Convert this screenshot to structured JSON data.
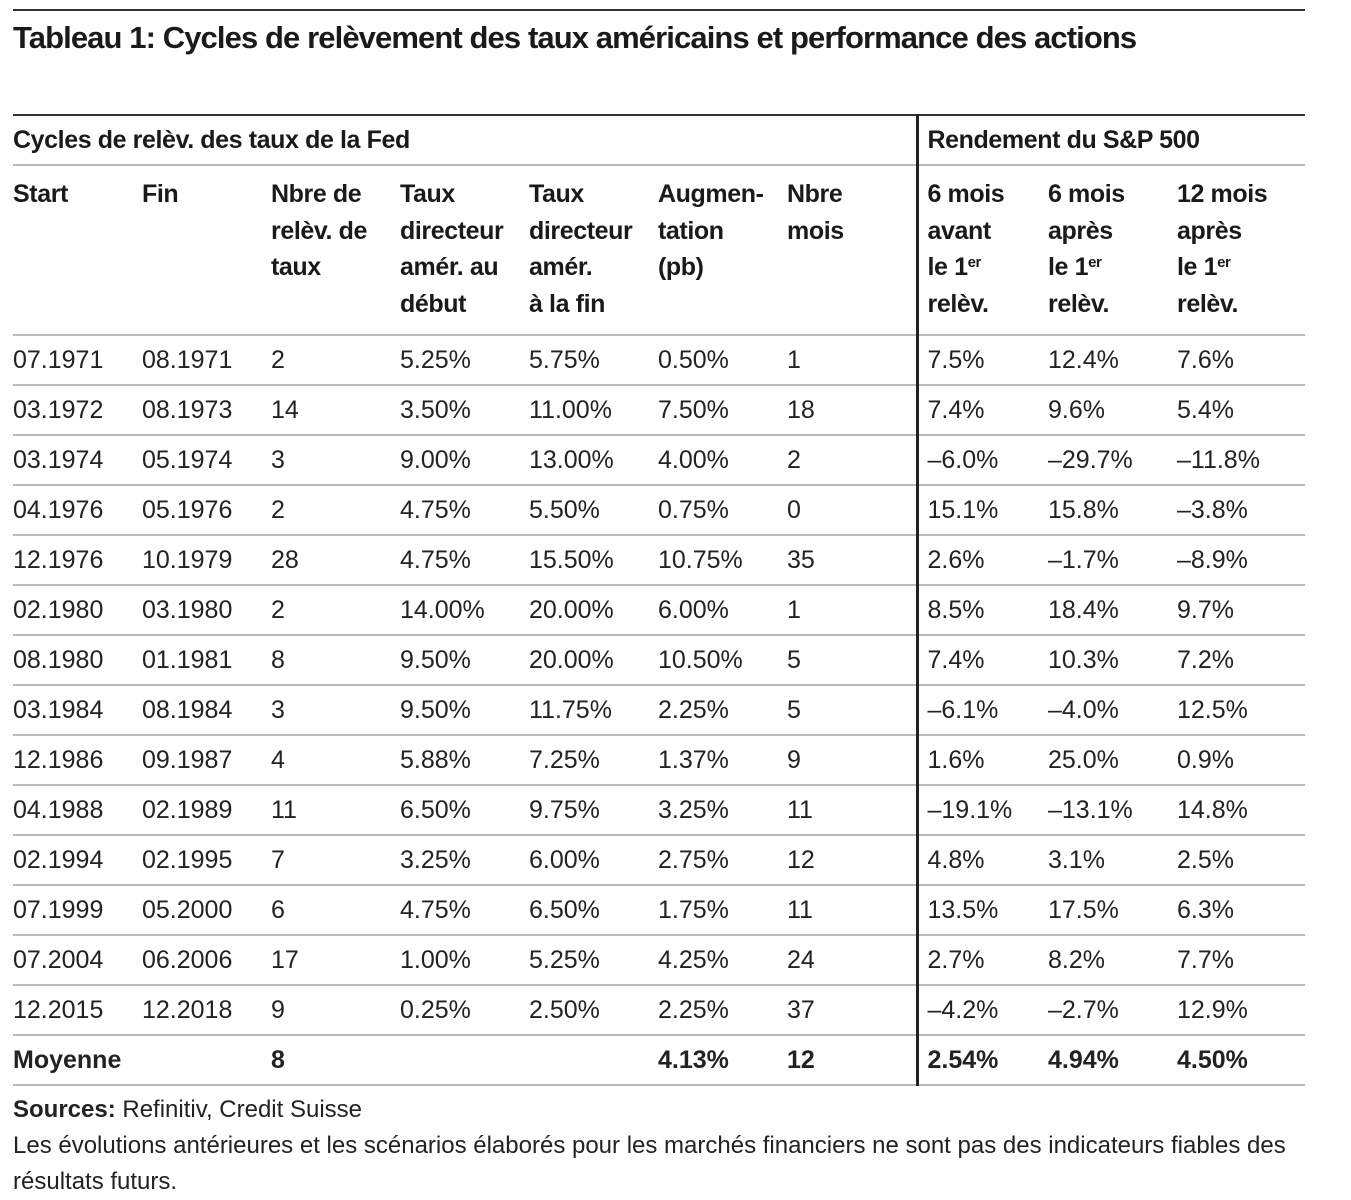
{
  "title": "Tableau 1: Cycles de relèvement des taux américains et performance des actions",
  "group_headers": [
    "Cycles de relèv. des taux de la Fed",
    "Rendement du S&P 500"
  ],
  "columns": [
    {
      "lines": [
        "Start"
      ]
    },
    {
      "lines": [
        "Fin"
      ]
    },
    {
      "lines": [
        "Nbre de",
        "relèv. de",
        "taux"
      ]
    },
    {
      "lines": [
        "Taux",
        "directeur",
        "amér. au",
        "début"
      ]
    },
    {
      "lines": [
        "Taux",
        "directeur",
        "amér.",
        "à la fin"
      ]
    },
    {
      "lines": [
        "Augmen-",
        "tation",
        "(pb)"
      ]
    },
    {
      "lines": [
        "Nbre",
        "mois"
      ]
    },
    {
      "lines": [
        "6 mois",
        "avant",
        "le 1|er",
        "relèv."
      ]
    },
    {
      "lines": [
        "6 mois",
        "après",
        "le 1|er",
        "relèv."
      ]
    },
    {
      "lines": [
        "12 mois",
        "après",
        "le 1|er",
        "relèv."
      ]
    }
  ],
  "rows": [
    [
      "07.1971",
      "08.1971",
      "2",
      "5.25%",
      "5.75%",
      "0.50%",
      "1",
      "7.5%",
      "12.4%",
      "7.6%"
    ],
    [
      "03.1972",
      "08.1973",
      "14",
      "3.50%",
      "11.00%",
      "7.50%",
      "18",
      "7.4%",
      "9.6%",
      "5.4%"
    ],
    [
      "03.1974",
      "05.1974",
      "3",
      "9.00%",
      "13.00%",
      "4.00%",
      "2",
      "–6.0%",
      "–29.7%",
      "–11.8%"
    ],
    [
      "04.1976",
      "05.1976",
      "2",
      "4.75%",
      "5.50%",
      "0.75%",
      "0",
      "15.1%",
      "15.8%",
      "–3.8%"
    ],
    [
      "12.1976",
      "10.1979",
      "28",
      "4.75%",
      "15.50%",
      "10.75%",
      "35",
      "2.6%",
      "–1.7%",
      "–8.9%"
    ],
    [
      "02.1980",
      "03.1980",
      "2",
      "14.00%",
      "20.00%",
      "6.00%",
      "1",
      "8.5%",
      "18.4%",
      "9.7%"
    ],
    [
      "08.1980",
      "01.1981",
      "8",
      "9.50%",
      "20.00%",
      "10.50%",
      "5",
      "7.4%",
      "10.3%",
      "7.2%"
    ],
    [
      "03.1984",
      "08.1984",
      "3",
      "9.50%",
      "11.75%",
      "2.25%",
      "5",
      "–6.1%",
      "–4.0%",
      "12.5%"
    ],
    [
      "12.1986",
      "09.1987",
      "4",
      "5.88%",
      "7.25%",
      "1.37%",
      "9",
      "1.6%",
      "25.0%",
      "0.9%"
    ],
    [
      "04.1988",
      "02.1989",
      "11",
      "6.50%",
      "9.75%",
      "3.25%",
      "11",
      "–19.1%",
      "–13.1%",
      "14.8%"
    ],
    [
      "02.1994",
      "02.1995",
      "7",
      "3.25%",
      "6.00%",
      "2.75%",
      "12",
      "4.8%",
      "3.1%",
      "2.5%"
    ],
    [
      "07.1999",
      "05.2000",
      "6",
      "4.75%",
      "6.50%",
      "1.75%",
      "11",
      "13.5%",
      "17.5%",
      "6.3%"
    ],
    [
      "07.2004",
      "06.2006",
      "17",
      "1.00%",
      "5.25%",
      "4.25%",
      "24",
      "2.7%",
      "8.2%",
      "7.7%"
    ],
    [
      "12.2015",
      "12.2018",
      "9",
      "0.25%",
      "2.50%",
      "2.25%",
      "37",
      "–4.2%",
      "–2.7%",
      "12.9%"
    ]
  ],
  "average": [
    "Moyenne",
    "",
    "8",
    "",
    "",
    "4.13%",
    "12",
    "2.54%",
    "4.94%",
    "4.50%"
  ],
  "footer": {
    "sources_label": "Sources:",
    "sources": " Refinitiv, Credit Suisse",
    "disclaimer": "Les évolutions antérieures et les scénarios élaborés pour les marchés financiers ne sont pas des indicateurs fiables des résultats futurs."
  }
}
